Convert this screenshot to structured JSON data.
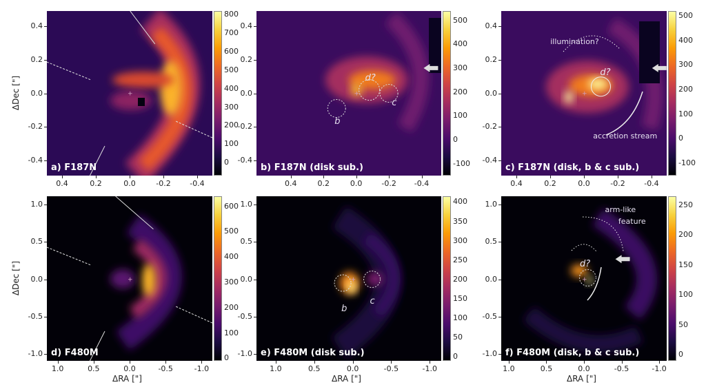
{
  "chart_data": [
    {
      "type": "heatmap",
      "panel": "a",
      "title": "a) F187N",
      "xlabel": "",
      "ylabel": "ΔDec [\"]",
      "xlim": [
        0.49,
        -0.49
      ],
      "ylim": [
        -0.49,
        0.49
      ],
      "xticks": [
        0.4,
        0.2,
        0.0,
        -0.2,
        -0.4
      ],
      "yticks": [
        0.4,
        0.2,
        0.0,
        -0.2,
        -0.4
      ],
      "colorbar": {
        "range": [
          -70,
          820
        ],
        "ticks": [
          0,
          100,
          200,
          300,
          400,
          500,
          600,
          700,
          800
        ]
      },
      "annotations": []
    },
    {
      "type": "heatmap",
      "panel": "b",
      "title": "b) F187N (disk sub.)",
      "xlabel": "",
      "ylabel": "",
      "xlim": [
        0.61,
        -0.52
      ],
      "ylim": [
        -0.49,
        0.49
      ],
      "xticks": [
        0.4,
        0.2,
        0.0,
        -0.2,
        -0.4
      ],
      "yticks": [
        0.4,
        0.2,
        0.0,
        -0.2,
        -0.4
      ],
      "colorbar": {
        "range": [
          -150,
          540
        ],
        "ticks": [
          -100,
          0,
          100,
          200,
          300,
          400,
          500
        ]
      },
      "annotations": [
        {
          "text": "d?",
          "x": -0.08,
          "y": 0.09
        },
        {
          "text": "b",
          "x": 0.12,
          "y": -0.17
        },
        {
          "text": "c",
          "x": -0.23,
          "y": -0.06
        }
      ]
    },
    {
      "type": "heatmap",
      "panel": "c",
      "title": "c) F187N (disk, b & c sub.)",
      "xlabel": "",
      "ylabel": "",
      "xlim": [
        0.49,
        -0.49
      ],
      "ylim": [
        -0.49,
        0.49
      ],
      "xticks": [
        0.4,
        0.2,
        0.0,
        -0.2,
        -0.4
      ],
      "yticks": [
        0.4,
        0.2,
        0.0,
        -0.2,
        -0.4
      ],
      "colorbar": {
        "range": [
          -150,
          520
        ],
        "ticks": [
          -100,
          0,
          100,
          200,
          300,
          400,
          500
        ]
      },
      "annotations": [
        {
          "text": "illumination?",
          "x": 0.04,
          "y": 0.3
        },
        {
          "text": "d?",
          "x": -0.12,
          "y": 0.12
        },
        {
          "text": "accretion stream",
          "x": -0.25,
          "y": -0.26
        }
      ]
    },
    {
      "type": "heatmap",
      "panel": "d",
      "title": "d) F480M",
      "xlabel": "ΔRA [\"]",
      "ylabel": "ΔDec [\"]",
      "xlim": [
        1.15,
        -1.15
      ],
      "ylim": [
        -1.09,
        1.11
      ],
      "xticks": [
        1.0,
        0.5,
        0.0,
        -0.5,
        -1.0
      ],
      "yticks": [
        1.0,
        0.5,
        0.0,
        -0.5,
        -1.0
      ],
      "colorbar": {
        "range": [
          -10,
          640
        ],
        "ticks": [
          0,
          100,
          200,
          300,
          400,
          500,
          600
        ]
      },
      "annotations": []
    },
    {
      "type": "heatmap",
      "panel": "e",
      "title": "e) F480M (disk sub.)",
      "xlabel": "ΔRA [\"]",
      "ylabel": "",
      "xlim": [
        1.25,
        -1.15
      ],
      "ylim": [
        -1.09,
        1.11
      ],
      "xticks": [
        1.0,
        0.5,
        0.0,
        -0.5,
        -1.0
      ],
      "yticks": [
        1.0,
        0.5,
        0.0,
        -0.5,
        -1.0
      ],
      "colorbar": {
        "range": [
          -10,
          415
        ],
        "ticks": [
          0,
          50,
          100,
          150,
          200,
          250,
          300,
          350,
          400
        ]
      },
      "annotations": [
        {
          "text": "b",
          "x": 0.12,
          "y": -0.4
        },
        {
          "text": "c",
          "x": -0.25,
          "y": -0.3
        }
      ]
    },
    {
      "type": "heatmap",
      "panel": "f",
      "title": "f) F480M (disk, b & c sub.)",
      "xlabel": "ΔRA [\"]",
      "ylabel": "",
      "xlim": [
        1.1,
        -1.1
      ],
      "ylim": [
        -1.09,
        1.11
      ],
      "xticks": [
        1.0,
        0.5,
        0.0,
        -0.5,
        -1.0
      ],
      "yticks": [
        1.0,
        0.5,
        0.0,
        -0.5,
        -1.0
      ],
      "colorbar": {
        "range": [
          -10,
          265
        ],
        "ticks": [
          0,
          50,
          100,
          150,
          200,
          250
        ]
      },
      "annotations": [
        {
          "text": "arm-like",
          "x": -0.5,
          "y": 0.92
        },
        {
          "text": "feature",
          "x": -0.65,
          "y": 0.76
        },
        {
          "text": "d?",
          "x": -0.0,
          "y": 0.2
        }
      ]
    }
  ]
}
